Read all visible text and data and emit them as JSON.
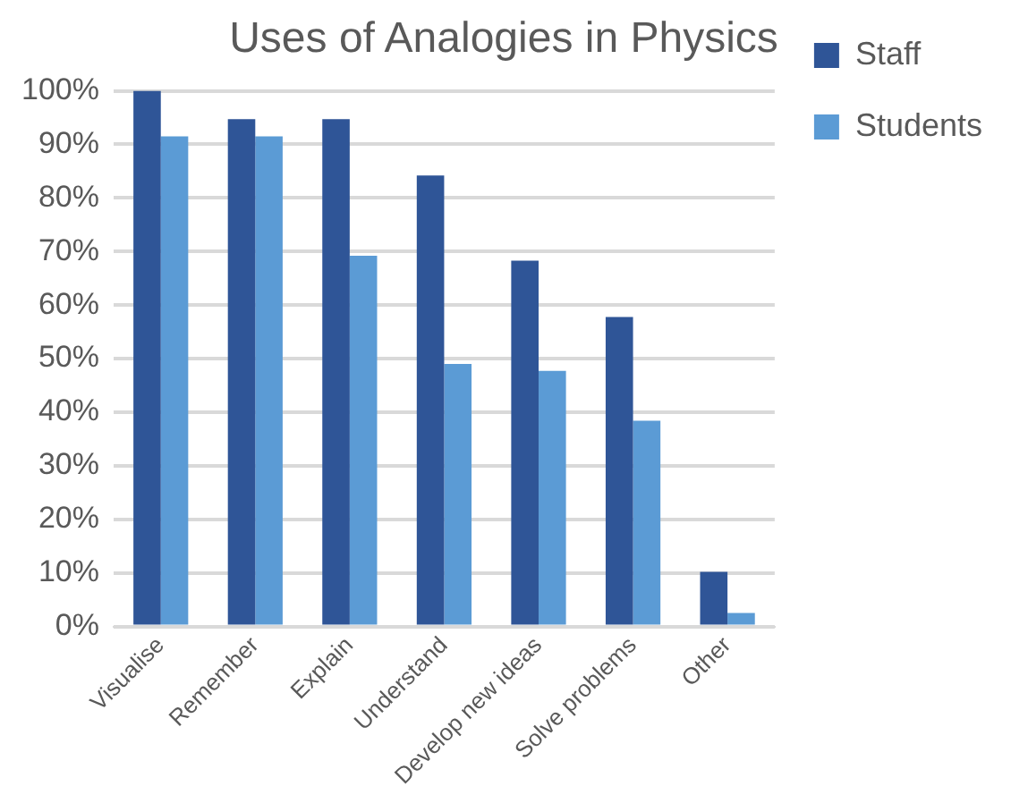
{
  "chart_data": {
    "type": "bar",
    "title": "Uses of Analogies in Physics",
    "categories": [
      "Visualise",
      "Remember",
      "Explain",
      "Understand",
      "Develop new ideas",
      "Solve problems",
      "Other"
    ],
    "series": [
      {
        "name": "Staff",
        "color": "#2f5597",
        "values": [
          100,
          94.7,
          94.7,
          84.2,
          68.3,
          57.8,
          10.2
        ]
      },
      {
        "name": "Students",
        "color": "#5b9bd5",
        "values": [
          91.5,
          91.5,
          69.2,
          49,
          47.7,
          38.4,
          2.5
        ]
      }
    ],
    "ylim": [
      0,
      100
    ],
    "yticks": [
      {
        "value": 0,
        "label": "0%"
      },
      {
        "value": 10,
        "label": "10%"
      },
      {
        "value": 20,
        "label": "20%"
      },
      {
        "value": 30,
        "label": "30%"
      },
      {
        "value": 40,
        "label": "40%"
      },
      {
        "value": 50,
        "label": "50%"
      },
      {
        "value": 60,
        "label": "60%"
      },
      {
        "value": 70,
        "label": "70%"
      },
      {
        "value": 80,
        "label": "80%"
      },
      {
        "value": 90,
        "label": "90%"
      },
      {
        "value": 100,
        "label": "100%"
      }
    ],
    "grid": "y",
    "legend": "top right"
  }
}
